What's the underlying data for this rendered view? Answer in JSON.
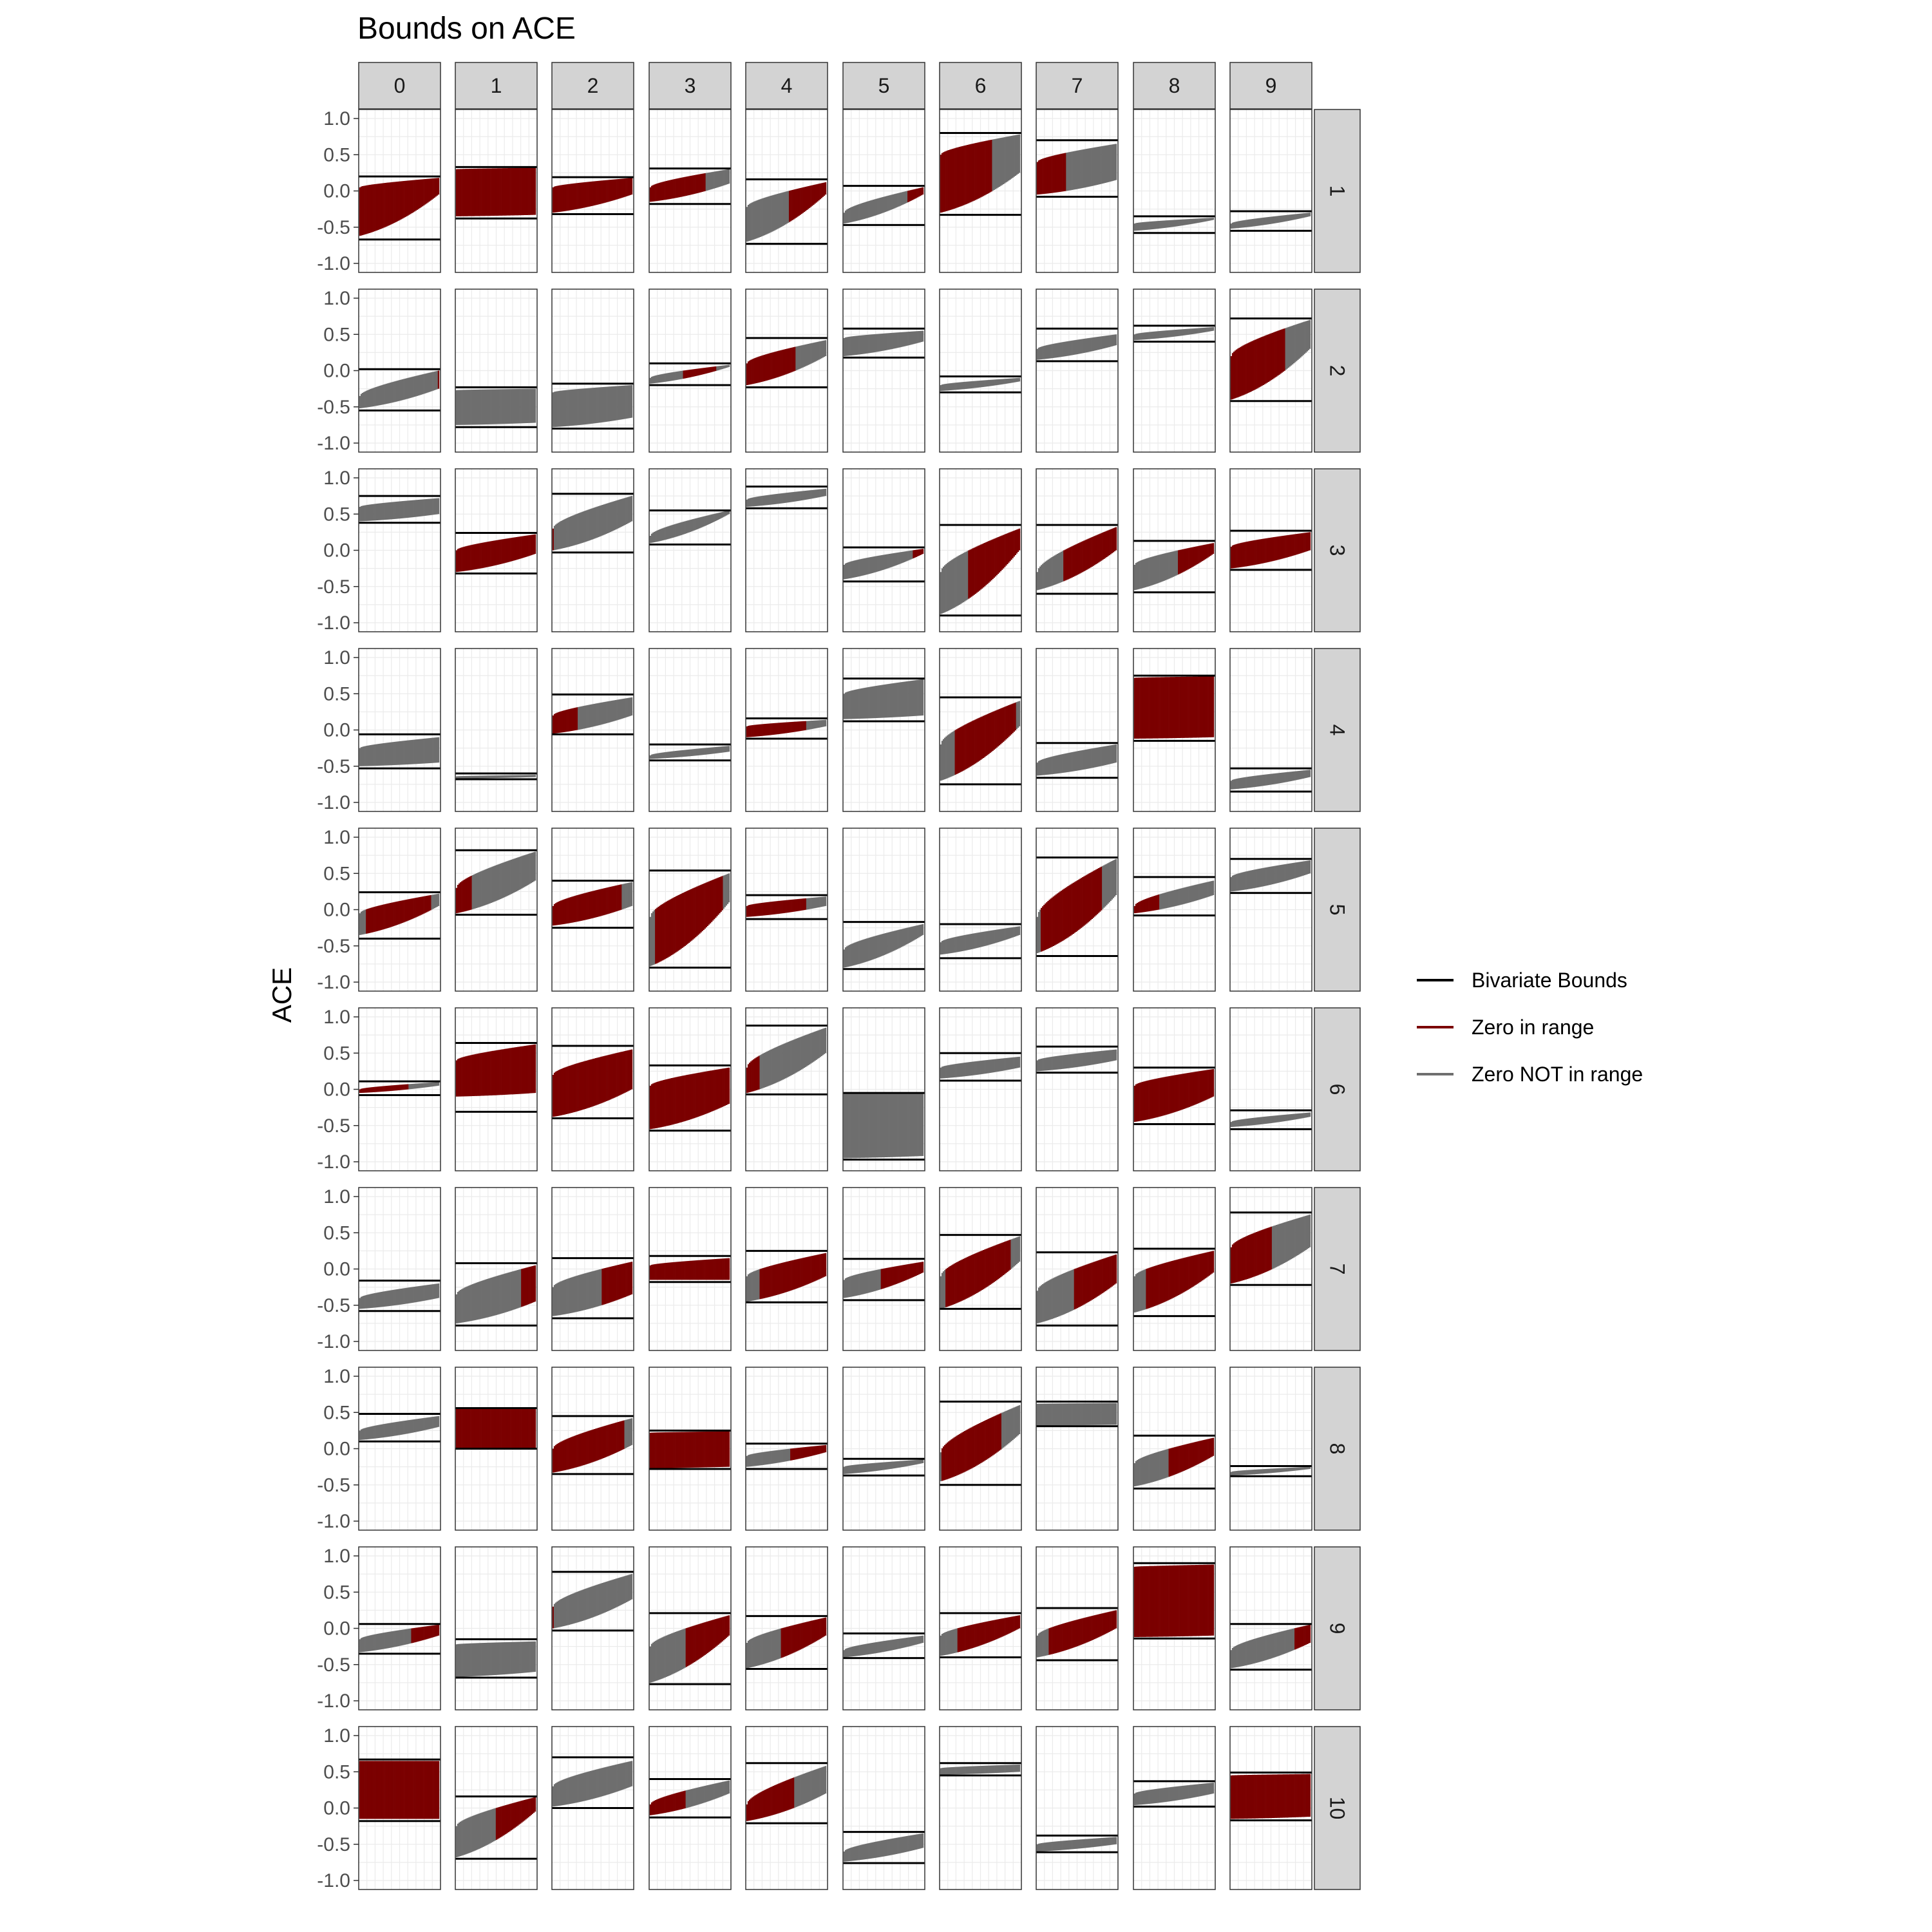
{
  "chart_data": {
    "type": "bounds_facet_grid",
    "title": "Bounds on ACE",
    "ylabel": "ACE",
    "xlabel": "",
    "ylim": [
      -1.0,
      1.0
    ],
    "yticks": [
      "1.0",
      "0.5",
      "0.0",
      "-0.5",
      "-1.0"
    ],
    "ytick_values": [
      1.0,
      0.5,
      0.0,
      -0.5,
      -1.0
    ],
    "grid": true,
    "legend_position": "right",
    "col_labels": [
      "0",
      "1",
      "2",
      "3",
      "4",
      "5",
      "6",
      "7",
      "8",
      "9"
    ],
    "row_labels": [
      "1",
      "2",
      "3",
      "4",
      "5",
      "6",
      "7",
      "8",
      "9",
      "10"
    ],
    "legend": [
      {
        "label": "Bivariate Bounds",
        "color": "#000000"
      },
      {
        "label": "Zero in range",
        "color": "#7b0000"
      },
      {
        "label": "Zero NOT in range",
        "color": "#6e6e6e"
      }
    ],
    "colors": {
      "bounds": "#000000",
      "zero_in": "#7b0000",
      "zero_out": "#6e6e6e",
      "strip_bg": "#d3d3d3",
      "grid": "#ebebeb"
    },
    "panel_note": "Each cell gives [lower bound, upper bound, band min at left, band min at right, band max at left, band max at right] in ACE units; an empty list means the panel has no band.",
    "panels": [
      [
        [
          -0.67,
          0.2,
          -0.62,
          -0.05,
          0.05,
          0.18
        ],
        [
          -0.38,
          0.33,
          -0.35,
          -0.33,
          0.3,
          0.32
        ],
        [
          -0.32,
          0.19,
          -0.3,
          -0.05,
          0.05,
          0.18
        ],
        [
          -0.18,
          0.31,
          -0.15,
          0.1,
          0.05,
          0.3
        ],
        [
          -0.73,
          0.16,
          -0.7,
          -0.05,
          -0.22,
          0.12
        ],
        [
          -0.47,
          0.07,
          -0.45,
          -0.05,
          -0.3,
          0.05
        ],
        [
          -0.33,
          0.8,
          -0.3,
          0.25,
          0.5,
          0.78
        ],
        [
          -0.08,
          0.7,
          -0.05,
          0.15,
          0.4,
          0.65
        ],
        [
          -0.58,
          -0.35,
          -0.55,
          -0.4,
          -0.45,
          -0.37
        ],
        [
          -0.55,
          -0.28,
          -0.52,
          -0.35,
          -0.45,
          -0.3
        ]
      ],
      [
        [
          -0.55,
          0.02,
          -0.52,
          -0.25,
          -0.35,
          0.0
        ],
        [
          -0.78,
          -0.23,
          -0.75,
          -0.72,
          -0.27,
          -0.25
        ],
        [
          -0.8,
          -0.18,
          -0.78,
          -0.65,
          -0.3,
          -0.2
        ],
        [
          -0.2,
          0.1,
          -0.18,
          0.05,
          -0.1,
          0.08
        ],
        [
          -0.23,
          0.45,
          -0.2,
          0.2,
          0.1,
          0.42
        ],
        [
          0.18,
          0.58,
          0.2,
          0.4,
          0.45,
          0.55
        ],
        [
          -0.3,
          -0.08,
          -0.28,
          -0.15,
          -0.2,
          -0.1
        ],
        [
          0.13,
          0.58,
          0.15,
          0.35,
          0.3,
          0.5
        ],
        [
          0.4,
          0.62,
          0.42,
          0.55,
          0.5,
          0.6
        ],
        [
          -0.42,
          0.72,
          -0.4,
          0.3,
          0.2,
          0.7
        ]
      ],
      [
        [
          0.38,
          0.75,
          0.4,
          0.5,
          0.6,
          0.72
        ],
        [
          -0.32,
          0.24,
          -0.3,
          -0.05,
          0.0,
          0.22
        ],
        [
          -0.03,
          0.78,
          0.0,
          0.4,
          0.3,
          0.75
        ],
        [
          0.08,
          0.55,
          0.1,
          0.5,
          0.2,
          0.55
        ],
        [
          0.58,
          0.88,
          0.6,
          0.75,
          0.7,
          0.85
        ],
        [
          -0.43,
          0.04,
          -0.4,
          -0.05,
          -0.2,
          0.02
        ],
        [
          -0.9,
          0.35,
          -0.88,
          0.0,
          -0.3,
          0.3
        ],
        [
          -0.6,
          0.35,
          -0.55,
          0.0,
          -0.3,
          0.32
        ],
        [
          -0.58,
          0.13,
          -0.55,
          -0.05,
          -0.2,
          0.1
        ],
        [
          -0.27,
          0.27,
          -0.25,
          0.0,
          0.05,
          0.25
        ]
      ],
      [
        [
          -0.53,
          -0.06,
          -0.5,
          -0.45,
          -0.25,
          -0.1
        ],
        [
          -0.68,
          -0.6,
          -0.67,
          -0.65,
          -0.64,
          -0.62
        ],
        [
          -0.06,
          0.49,
          -0.05,
          0.2,
          0.2,
          0.45
        ],
        [
          -0.42,
          -0.2,
          -0.4,
          -0.3,
          -0.35,
          -0.22
        ],
        [
          -0.12,
          0.16,
          -0.1,
          0.05,
          0.05,
          0.14
        ],
        [
          0.12,
          0.71,
          0.15,
          0.2,
          0.5,
          0.7
        ],
        [
          -0.75,
          0.45,
          -0.7,
          0.05,
          -0.2,
          0.4
        ],
        [
          -0.66,
          -0.18,
          -0.63,
          -0.45,
          -0.45,
          -0.2
        ],
        [
          -0.15,
          0.75,
          -0.12,
          -0.1,
          0.72,
          0.74
        ],
        [
          -0.85,
          -0.53,
          -0.82,
          -0.65,
          -0.7,
          -0.55
        ]
      ],
      [
        [
          -0.4,
          0.24,
          -0.35,
          0.05,
          -0.05,
          0.22
        ],
        [
          -0.07,
          0.82,
          -0.05,
          0.4,
          0.3,
          0.8
        ],
        [
          -0.25,
          0.4,
          -0.22,
          0.05,
          0.05,
          0.38
        ],
        [
          -0.8,
          0.54,
          -0.78,
          0.1,
          -0.1,
          0.5
        ],
        [
          -0.13,
          0.2,
          -0.1,
          0.05,
          0.05,
          0.18
        ],
        [
          -0.82,
          -0.17,
          -0.8,
          -0.35,
          -0.55,
          -0.2
        ],
        [
          -0.67,
          -0.2,
          -0.62,
          -0.35,
          -0.45,
          -0.23
        ],
        [
          -0.64,
          0.72,
          -0.6,
          0.2,
          -0.1,
          0.7
        ],
        [
          -0.08,
          0.45,
          -0.05,
          0.2,
          0.05,
          0.4
        ],
        [
          0.23,
          0.7,
          0.25,
          0.5,
          0.45,
          0.68
        ]
      ],
      [
        [
          -0.08,
          0.11,
          -0.05,
          0.05,
          0.0,
          0.1
        ],
        [
          -0.31,
          0.64,
          -0.1,
          -0.05,
          0.4,
          0.62
        ],
        [
          -0.4,
          0.6,
          -0.38,
          0.0,
          0.2,
          0.55
        ],
        [
          -0.57,
          0.33,
          -0.55,
          -0.2,
          0.05,
          0.3
        ],
        [
          -0.07,
          0.88,
          -0.05,
          0.5,
          0.3,
          0.85
        ],
        [
          -0.97,
          -0.05,
          -0.95,
          -0.92,
          -0.06,
          -0.05
        ],
        [
          0.12,
          0.5,
          0.15,
          0.3,
          0.3,
          0.45
        ],
        [
          0.23,
          0.59,
          0.25,
          0.4,
          0.4,
          0.55
        ],
        [
          -0.48,
          0.3,
          -0.45,
          -0.1,
          0.05,
          0.28
        ],
        [
          -0.55,
          -0.29,
          -0.52,
          -0.38,
          -0.45,
          -0.32
        ]
      ],
      [
        [
          -0.58,
          -0.16,
          -0.55,
          -0.4,
          -0.4,
          -0.2
        ],
        [
          -0.78,
          0.08,
          -0.75,
          -0.45,
          -0.35,
          0.05
        ],
        [
          -0.68,
          0.15,
          -0.65,
          -0.35,
          -0.25,
          0.1
        ],
        [
          -0.18,
          0.18,
          -0.15,
          -0.15,
          0.05,
          0.15
        ],
        [
          -0.46,
          0.25,
          -0.45,
          -0.1,
          -0.1,
          0.22
        ],
        [
          -0.43,
          0.14,
          -0.4,
          -0.05,
          -0.15,
          0.1
        ],
        [
          -0.55,
          0.47,
          -0.55,
          0.1,
          -0.1,
          0.45
        ],
        [
          -0.78,
          0.23,
          -0.75,
          -0.2,
          -0.3,
          0.2
        ],
        [
          -0.65,
          0.28,
          -0.6,
          -0.05,
          -0.1,
          0.25
        ],
        [
          -0.22,
          0.78,
          -0.2,
          0.3,
          0.3,
          0.75
        ]
      ],
      [
        [
          0.1,
          0.48,
          0.12,
          0.3,
          0.25,
          0.45
        ],
        [
          0.0,
          0.56,
          0.0,
          0.0,
          0.55,
          0.55
        ],
        [
          -0.35,
          0.45,
          -0.33,
          0.05,
          0.0,
          0.42
        ],
        [
          -0.28,
          0.25,
          -0.27,
          -0.25,
          0.22,
          0.24
        ],
        [
          -0.28,
          0.07,
          -0.25,
          -0.05,
          -0.1,
          0.05
        ],
        [
          -0.37,
          -0.14,
          -0.35,
          -0.2,
          -0.25,
          -0.15
        ],
        [
          -0.5,
          0.65,
          -0.45,
          0.2,
          -0.05,
          0.6
        ],
        [
          0.31,
          0.65,
          0.32,
          0.33,
          0.62,
          0.63
        ],
        [
          -0.55,
          0.18,
          -0.52,
          -0.1,
          -0.2,
          0.15
        ],
        [
          -0.38,
          -0.24,
          -0.37,
          -0.28,
          -0.32,
          -0.25
        ]
      ],
      [
        [
          -0.35,
          0.06,
          -0.33,
          -0.1,
          -0.15,
          0.05
        ],
        [
          -0.68,
          -0.15,
          -0.67,
          -0.6,
          -0.22,
          -0.18
        ],
        [
          -0.03,
          0.78,
          0.0,
          0.4,
          0.3,
          0.75
        ],
        [
          -0.77,
          0.21,
          -0.75,
          -0.1,
          -0.25,
          0.18
        ],
        [
          -0.56,
          0.17,
          -0.55,
          -0.1,
          -0.2,
          0.15
        ],
        [
          -0.41,
          -0.07,
          -0.4,
          -0.2,
          -0.3,
          -0.1
        ],
        [
          -0.4,
          0.21,
          -0.38,
          0.0,
          -0.1,
          0.18
        ],
        [
          -0.44,
          0.28,
          -0.4,
          0.0,
          -0.1,
          0.25
        ],
        [
          -0.14,
          0.9,
          -0.12,
          -0.1,
          0.85,
          0.88
        ],
        [
          -0.57,
          0.06,
          -0.55,
          -0.2,
          -0.3,
          0.05
        ]
      ],
      [
        [
          -0.18,
          0.67,
          -0.15,
          -0.15,
          0.65,
          0.65
        ],
        [
          -0.7,
          0.16,
          -0.68,
          -0.05,
          -0.25,
          0.15
        ],
        [
          0.0,
          0.7,
          0.02,
          0.3,
          0.3,
          0.65
        ],
        [
          -0.13,
          0.4,
          -0.1,
          0.2,
          0.05,
          0.38
        ],
        [
          -0.21,
          0.62,
          -0.18,
          0.2,
          0.05,
          0.58
        ],
        [
          -0.76,
          -0.33,
          -0.74,
          -0.55,
          -0.6,
          -0.35
        ],
        [
          0.45,
          0.62,
          0.46,
          0.5,
          0.55,
          0.6
        ],
        [
          -0.61,
          -0.38,
          -0.6,
          -0.5,
          -0.5,
          -0.4
        ],
        [
          0.02,
          0.37,
          0.04,
          0.2,
          0.2,
          0.35
        ],
        [
          -0.17,
          0.49,
          -0.15,
          -0.12,
          0.45,
          0.47
        ]
      ]
    ]
  }
}
